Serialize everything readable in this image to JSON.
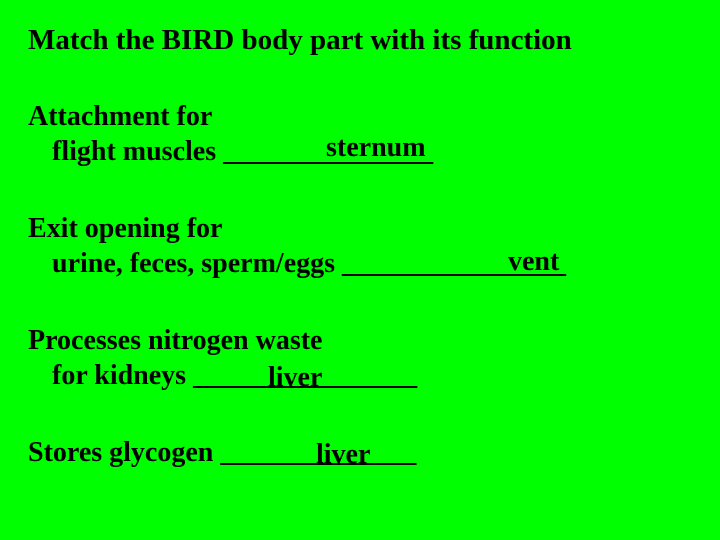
{
  "background_color": "#00ff00",
  "text_color": "#000000",
  "font_family": "Times New Roman",
  "title_fontsize": 29,
  "body_fontsize": 28,
  "title": "Match the BIRD body part with its function",
  "items": [
    {
      "line1": "Attachment for",
      "line2": "flight muscles   _______________",
      "answer": "sternum"
    },
    {
      "line1": "Exit opening for",
      "line2": "urine, feces, sperm/eggs  ________________",
      "answer": "vent"
    },
    {
      "line1": "Processes nitrogen waste",
      "line2": "for kidneys ________________",
      "answer": "liver"
    },
    {
      "line1": "Stores glycogen  ______________",
      "line2": "",
      "answer": "liver"
    }
  ]
}
